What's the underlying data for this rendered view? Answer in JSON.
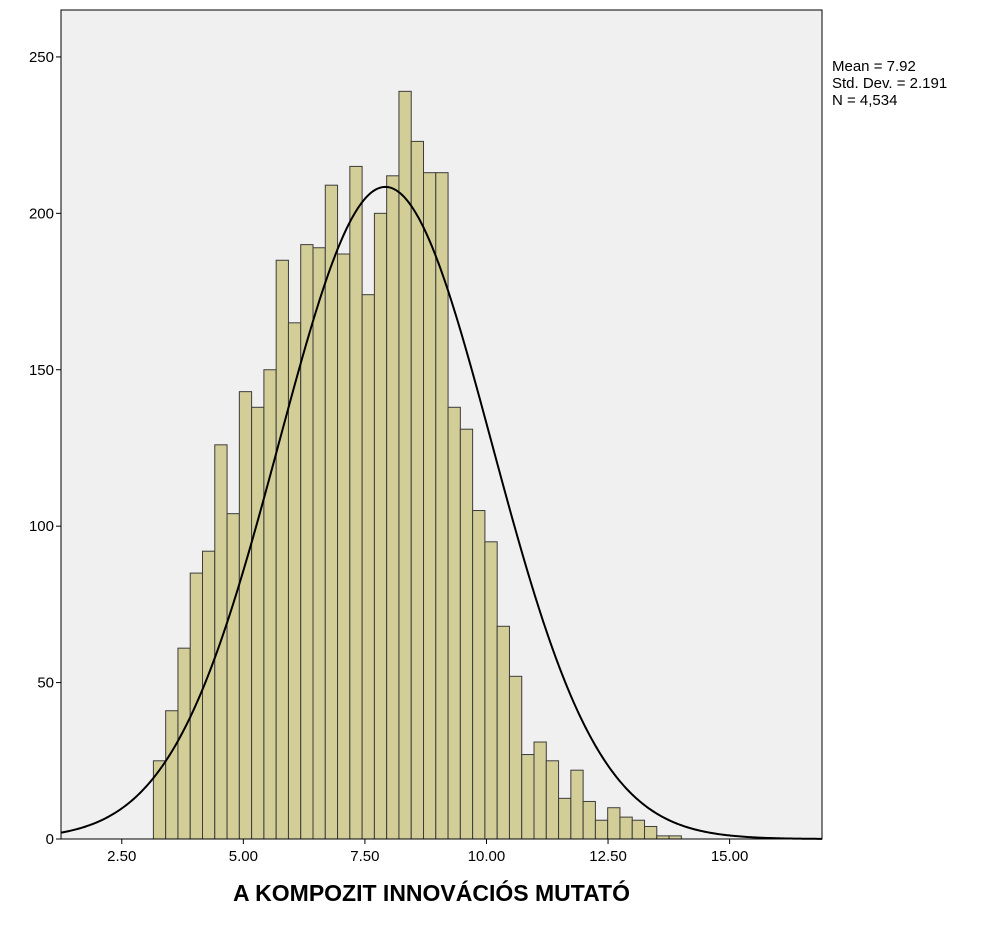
{
  "chart_data": {
    "type": "bar",
    "subtype": "histogram",
    "title": "",
    "xlabel": "A KOMPOZIT INNOVÁCIÓS MUTATÓ",
    "ylabel": "",
    "xlim": [
      1.25,
      16.9
    ],
    "ylim": [
      0,
      265
    ],
    "x_ticks": [
      2.5,
      5.0,
      7.5,
      10.0,
      12.5,
      15.0
    ],
    "x_tick_labels": [
      "2.50",
      "5.00",
      "7.50",
      "10.00",
      "12.50",
      "15.00"
    ],
    "y_ticks": [
      0,
      50,
      100,
      150,
      200,
      250
    ],
    "y_tick_labels": [
      "0",
      "50",
      "100",
      "150",
      "200",
      "250"
    ],
    "bin_start": 3.15,
    "bin_width": 0.2525,
    "values": [
      25,
      41,
      61,
      85,
      92,
      126,
      104,
      143,
      138,
      150,
      185,
      165,
      190,
      189,
      209,
      187,
      215,
      174,
      200,
      212,
      239,
      223,
      213,
      213,
      138,
      131,
      105,
      95,
      68,
      52,
      27,
      31,
      25,
      13,
      22,
      12,
      6,
      10,
      7,
      6,
      4,
      1,
      1
    ],
    "normal_curve": {
      "mean": 7.92,
      "sd": 2.191,
      "n": 4534
    },
    "grid": false,
    "legend": "none",
    "colors": {
      "plot_background": "#F0F0F0",
      "bar_fill": "#D3CE97",
      "bar_stroke": "#3C3C3C",
      "curve": "#000000",
      "axis": "#000000"
    }
  },
  "stats": {
    "mean": "Mean = 7.92",
    "std": "Std. Dev. = 2.191",
    "n": "N = 4,534"
  }
}
